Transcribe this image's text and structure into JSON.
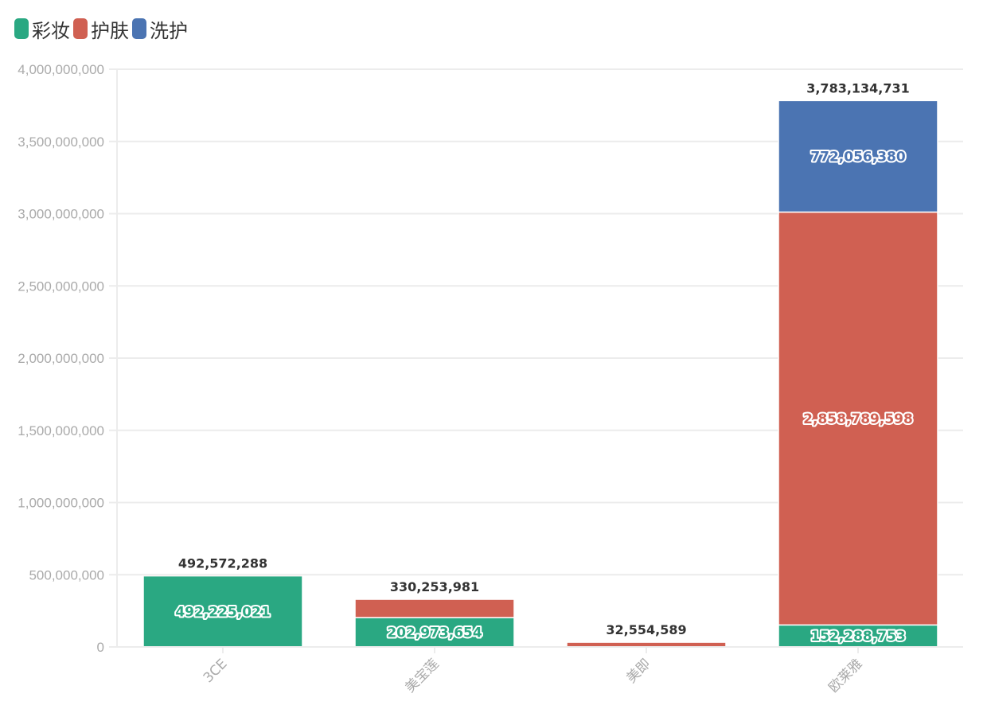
{
  "chart_data": {
    "type": "bar",
    "stacked": true,
    "title": "",
    "xlabel": "",
    "ylabel": "",
    "categories": [
      "3CE",
      "美宝莲",
      "美即",
      "欧莱雅"
    ],
    "series": [
      {
        "name": "彩妆",
        "color": "#2aa882",
        "values": [
          492225021,
          202973654,
          0,
          152288753
        ]
      },
      {
        "name": "护肤",
        "color": "#d06052",
        "values": [
          347267,
          127280327,
          32554589,
          2858789598
        ]
      },
      {
        "name": "洗护",
        "color": "#4b74b2",
        "values": [
          0,
          0,
          0,
          772056380
        ]
      }
    ],
    "totals": [
      492572288,
      330253981,
      32554589,
      3783134731
    ],
    "total_labels": [
      "492,572,288",
      "330,253,981",
      "32,554,589",
      "3,783,134,731"
    ],
    "segment_labels": [
      {
        "category": "3CE",
        "series": "彩妆",
        "text": "492,225,021"
      },
      {
        "category": "美宝莲",
        "series": "彩妆",
        "text": "202,973,654"
      },
      {
        "category": "欧莱雅",
        "series": "彩妆",
        "text": "152,288,753"
      },
      {
        "category": "欧莱雅",
        "series": "护肤",
        "text": "2,858,789,598"
      },
      {
        "category": "欧莱雅",
        "series": "洗护",
        "text": "772,056,380"
      }
    ],
    "ylim": [
      0,
      4000000000
    ],
    "yticks": [
      0,
      500000000,
      1000000000,
      1500000000,
      2000000000,
      2500000000,
      3000000000,
      3500000000,
      4000000000
    ],
    "ytick_labels": [
      "0",
      "500,000,000",
      "1,000,000,000",
      "1,500,000,000",
      "2,000,000,000",
      "2,500,000,000",
      "3,000,000,000",
      "3,500,000,000",
      "4,000,000,000"
    ],
    "x_label_rotation_deg": -45,
    "grid": true,
    "legend": {
      "position": "top-left",
      "entries": [
        "彩妆",
        "护肤",
        "洗护"
      ]
    }
  }
}
